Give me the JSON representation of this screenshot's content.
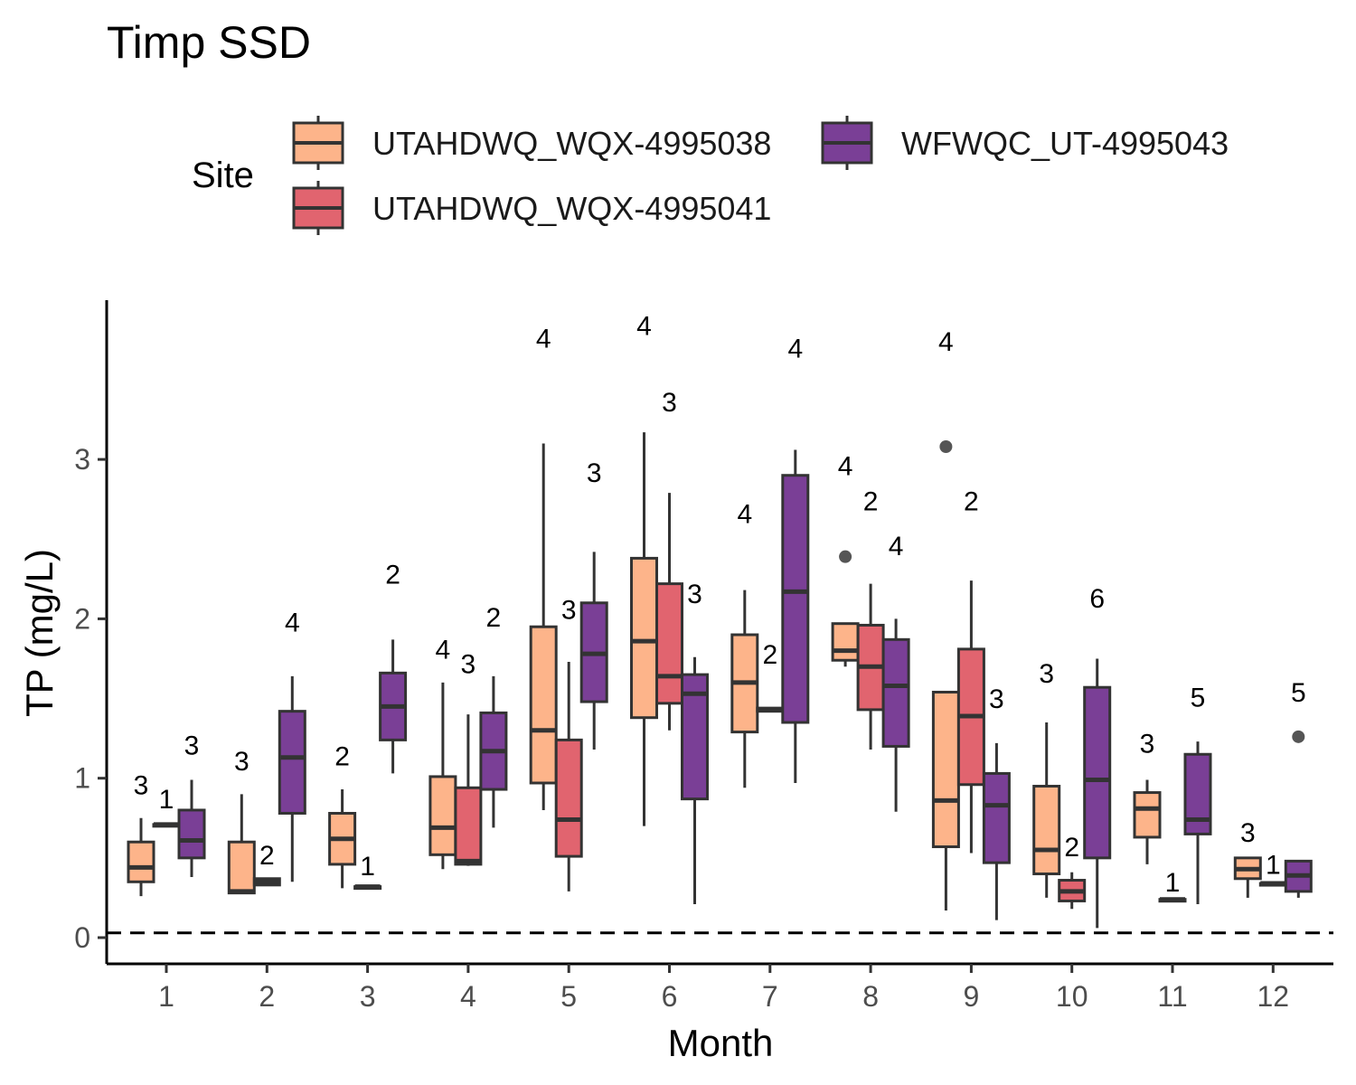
{
  "chart_data": {
    "type": "boxplot",
    "title": "Timp SSD",
    "xlabel": "Month",
    "ylabel": "TP (mg/L)",
    "legend": {
      "title": "Site",
      "placement": "top"
    },
    "categories": [
      "1",
      "2",
      "3",
      "4",
      "5",
      "6",
      "7",
      "8",
      "9",
      "10",
      "11",
      "12"
    ],
    "yticks": [
      0,
      1,
      2,
      3
    ],
    "ylim": [
      -0.17,
      3.97
    ],
    "reference_line": {
      "y": 0.03,
      "style": "dashed"
    },
    "grid": false,
    "series": [
      {
        "name": "UTAHDWQ_WQX-4995038",
        "color": "#FDB48A",
        "boxes": [
          {
            "month": "1",
            "n": "3",
            "min": 0.26,
            "q1": 0.35,
            "median": 0.44,
            "q3": 0.6,
            "max": 0.75,
            "outliers": [],
            "count_label_y": 0.9
          },
          {
            "month": "2",
            "n": "3",
            "min": 0.28,
            "q1": 0.28,
            "median": 0.29,
            "q3": 0.6,
            "max": 0.9,
            "outliers": [],
            "count_label_y": 1.05
          },
          {
            "month": "3",
            "n": "2",
            "min": 0.31,
            "q1": 0.46,
            "median": 0.62,
            "q3": 0.78,
            "max": 0.93,
            "outliers": [],
            "count_label_y": 1.08
          },
          {
            "month": "4",
            "n": "4",
            "min": 0.43,
            "q1": 0.52,
            "median": 0.69,
            "q3": 1.01,
            "max": 1.6,
            "outliers": [],
            "count_label_y": 1.75
          },
          {
            "month": "5",
            "n": "4",
            "min": 0.8,
            "q1": 0.97,
            "median": 1.3,
            "q3": 1.95,
            "max": 3.1,
            "outliers": [],
            "count_label_y": 3.7
          },
          {
            "month": "6",
            "n": "4",
            "min": 0.7,
            "q1": 1.38,
            "median": 1.86,
            "q3": 2.38,
            "max": 3.17,
            "outliers": [],
            "count_label_y": 3.78
          },
          {
            "month": "7",
            "n": "4",
            "min": 0.94,
            "q1": 1.29,
            "median": 1.6,
            "q3": 1.9,
            "max": 2.18,
            "outliers": [],
            "count_label_y": 2.6
          },
          {
            "month": "8",
            "n": "4",
            "min": 1.7,
            "q1": 1.74,
            "median": 1.8,
            "q3": 1.97,
            "max": 1.97,
            "outliers": [
              2.39
            ],
            "count_label_y": 2.9
          },
          {
            "month": "9",
            "n": "4",
            "min": 0.17,
            "q1": 0.57,
            "median": 0.86,
            "q3": 1.54,
            "max": 1.54,
            "outliers": [
              3.08
            ],
            "count_label_y": 3.68
          },
          {
            "month": "10",
            "n": "3",
            "min": 0.25,
            "q1": 0.4,
            "median": 0.55,
            "q3": 0.95,
            "max": 1.35,
            "outliers": [],
            "count_label_y": 1.6
          },
          {
            "month": "11",
            "n": "3",
            "min": 0.46,
            "q1": 0.63,
            "median": 0.81,
            "q3": 0.91,
            "max": 0.99,
            "outliers": [],
            "count_label_y": 1.16
          },
          {
            "month": "12",
            "n": "3",
            "min": 0.25,
            "q1": 0.37,
            "median": 0.43,
            "q3": 0.5,
            "max": 0.5,
            "outliers": [],
            "count_label_y": 0.6
          }
        ]
      },
      {
        "name": "UTAHDWQ_WQX-4995041",
        "color": "#E1646F",
        "boxes": [
          {
            "month": "1",
            "n": "1",
            "min": 0.71,
            "q1": 0.71,
            "median": 0.71,
            "q3": 0.71,
            "max": 0.71,
            "outliers": [],
            "count_label_y": 0.81
          },
          {
            "month": "2",
            "n": "2",
            "min": 0.33,
            "q1": 0.33,
            "median": 0.35,
            "q3": 0.37,
            "max": 0.37,
            "outliers": [],
            "count_label_y": 0.46
          },
          {
            "month": "3",
            "n": "1",
            "min": 0.32,
            "q1": 0.32,
            "median": 0.32,
            "q3": 0.32,
            "max": 0.32,
            "outliers": [],
            "count_label_y": 0.39
          },
          {
            "month": "4",
            "n": "3",
            "min": 0.45,
            "q1": 0.46,
            "median": 0.48,
            "q3": 0.94,
            "max": 1.4,
            "outliers": [],
            "count_label_y": 1.66
          },
          {
            "month": "5",
            "n": "3",
            "min": 0.29,
            "q1": 0.51,
            "median": 0.74,
            "q3": 1.24,
            "max": 1.73,
            "outliers": [],
            "count_label_y": 2.0
          },
          {
            "month": "6",
            "n": "3",
            "min": 1.3,
            "q1": 1.47,
            "median": 1.64,
            "q3": 2.22,
            "max": 2.79,
            "outliers": [],
            "count_label_y": 3.3
          },
          {
            "month": "7",
            "n": "2",
            "min": 1.42,
            "q1": 1.42,
            "median": 1.43,
            "q3": 1.44,
            "max": 1.44,
            "outliers": [],
            "count_label_y": 1.72
          },
          {
            "month": "8",
            "n": "2",
            "min": 1.18,
            "q1": 1.43,
            "median": 1.7,
            "q3": 1.96,
            "max": 2.22,
            "outliers": [],
            "count_label_y": 2.68
          },
          {
            "month": "9",
            "n": "2",
            "min": 0.53,
            "q1": 0.96,
            "median": 1.39,
            "q3": 1.81,
            "max": 2.24,
            "outliers": [],
            "count_label_y": 2.68
          },
          {
            "month": "10",
            "n": "2",
            "min": 0.18,
            "q1": 0.23,
            "median": 0.29,
            "q3": 0.36,
            "max": 0.41,
            "outliers": [],
            "count_label_y": 0.51
          },
          {
            "month": "11",
            "n": "1",
            "min": 0.24,
            "q1": 0.24,
            "median": 0.24,
            "q3": 0.24,
            "max": 0.24,
            "outliers": [],
            "count_label_y": 0.29
          },
          {
            "month": "12",
            "n": "1",
            "min": 0.34,
            "q1": 0.34,
            "median": 0.34,
            "q3": 0.34,
            "max": 0.34,
            "outliers": [],
            "count_label_y": 0.4
          }
        ]
      },
      {
        "name": "WFWQC_UT-4995043",
        "color": "#7A3F96",
        "boxes": [
          {
            "month": "1",
            "n": "3",
            "min": 0.38,
            "q1": 0.5,
            "median": 0.61,
            "q3": 0.8,
            "max": 0.99,
            "outliers": [],
            "count_label_y": 1.15
          },
          {
            "month": "2",
            "n": "4",
            "min": 0.35,
            "q1": 0.78,
            "median": 1.13,
            "q3": 1.42,
            "max": 1.64,
            "outliers": [],
            "count_label_y": 1.92
          },
          {
            "month": "3",
            "n": "2",
            "min": 1.03,
            "q1": 1.24,
            "median": 1.45,
            "q3": 1.66,
            "max": 1.87,
            "outliers": [],
            "count_label_y": 2.22
          },
          {
            "month": "4",
            "n": "2",
            "min": 0.69,
            "q1": 0.93,
            "median": 1.17,
            "q3": 1.41,
            "max": 1.64,
            "outliers": [],
            "count_label_y": 1.95
          },
          {
            "month": "5",
            "n": "3",
            "min": 1.18,
            "q1": 1.48,
            "median": 1.78,
            "q3": 2.1,
            "max": 2.42,
            "outliers": [],
            "count_label_y": 2.86
          },
          {
            "month": "6",
            "n": "3",
            "min": 0.21,
            "q1": 0.87,
            "median": 1.53,
            "q3": 1.65,
            "max": 1.76,
            "outliers": [],
            "count_label_y": 2.1
          },
          {
            "month": "7",
            "n": "4",
            "min": 0.97,
            "q1": 1.35,
            "median": 2.17,
            "q3": 2.9,
            "max": 3.06,
            "outliers": [],
            "count_label_y": 3.64
          },
          {
            "month": "8",
            "n": "4",
            "min": 0.79,
            "q1": 1.2,
            "median": 1.58,
            "q3": 1.87,
            "max": 2.0,
            "outliers": [],
            "count_label_y": 2.4
          },
          {
            "month": "9",
            "n": "3",
            "min": 0.11,
            "q1": 0.47,
            "median": 0.83,
            "q3": 1.03,
            "max": 1.22,
            "outliers": [],
            "count_label_y": 1.44
          },
          {
            "month": "10",
            "n": "6",
            "min": 0.06,
            "q1": 0.5,
            "median": 0.99,
            "q3": 1.57,
            "max": 1.75,
            "outliers": [],
            "count_label_y": 2.07
          },
          {
            "month": "11",
            "n": "5",
            "min": 0.21,
            "q1": 0.65,
            "median": 0.74,
            "q3": 1.15,
            "max": 1.23,
            "outliers": [],
            "count_label_y": 1.45
          },
          {
            "month": "12",
            "n": "5",
            "min": 0.25,
            "q1": 0.29,
            "median": 0.39,
            "q3": 0.48,
            "max": 0.48,
            "outliers": [
              1.26
            ],
            "count_label_y": 1.48
          }
        ]
      }
    ]
  }
}
